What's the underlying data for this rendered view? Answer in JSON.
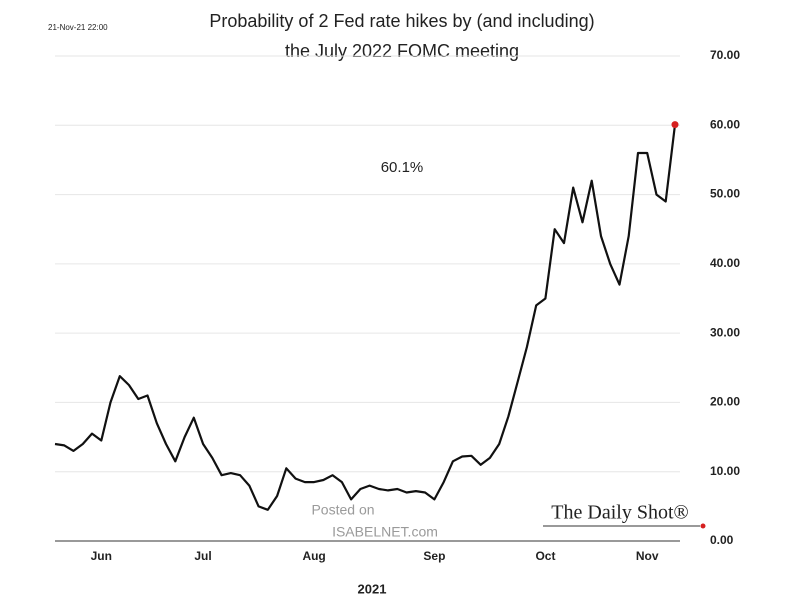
{
  "chart_data": {
    "type": "line",
    "timestamp": "21-Nov-21 22:00",
    "title": [
      "Probability of 2 Fed rate hikes by (and including)",
      "the July 2022 FOMC meeting"
    ],
    "annotation": "60.1%",
    "xlabel": "2021",
    "source": "The Daily Shot®",
    "watermark": [
      "Posted on",
      "ISABELNET.com"
    ],
    "categories": [
      null,
      null,
      null,
      null,
      null,
      "Jun",
      null,
      null,
      null,
      null,
      null,
      null,
      null,
      null,
      null,
      null,
      "Jul",
      null,
      null,
      null,
      null,
      null,
      null,
      null,
      null,
      null,
      null,
      null,
      "Aug",
      null,
      null,
      null,
      null,
      null,
      null,
      null,
      null,
      null,
      null,
      null,
      null,
      "Sep",
      null,
      null,
      null,
      null,
      null,
      null,
      null,
      null,
      null,
      null,
      null,
      "Oct",
      null,
      null,
      null,
      null,
      null,
      null,
      null,
      null,
      null,
      null,
      "Nov",
      null,
      null,
      null
    ],
    "series": [
      {
        "name": "Probability",
        "color": "#111111",
        "marker_color": "#d62020",
        "values": [
          14,
          13.8,
          13,
          14,
          15.5,
          14.5,
          20,
          23.8,
          22.5,
          20.5,
          21,
          17,
          14,
          11.5,
          15,
          17.8,
          14,
          12,
          9.5,
          9.8,
          9.5,
          8,
          5,
          4.5,
          6.5,
          10.5,
          9,
          8.5,
          8.5,
          8.8,
          9.5,
          8.5,
          6,
          7.5,
          8,
          7.5,
          7.3,
          7.5,
          7,
          7.2,
          7,
          6,
          8.5,
          11.5,
          12.2,
          12.3,
          11,
          12,
          14,
          18,
          23,
          28,
          34,
          35,
          45,
          43,
          51,
          46,
          52,
          44,
          40,
          37,
          44,
          56,
          56,
          50,
          49,
          60.1
        ]
      }
    ],
    "ylim": [
      0,
      70
    ],
    "yticks": [
      {
        "value": 0,
        "label": "0.00"
      },
      {
        "value": 10,
        "label": "10.00"
      },
      {
        "value": 20,
        "label": "20.00"
      },
      {
        "value": 30,
        "label": "30.00"
      },
      {
        "value": 40,
        "label": "40.00"
      },
      {
        "value": 50,
        "label": "50.00"
      },
      {
        "value": 60,
        "label": "60.00"
      },
      {
        "value": 70,
        "label": "70.00"
      }
    ],
    "grid": true
  }
}
